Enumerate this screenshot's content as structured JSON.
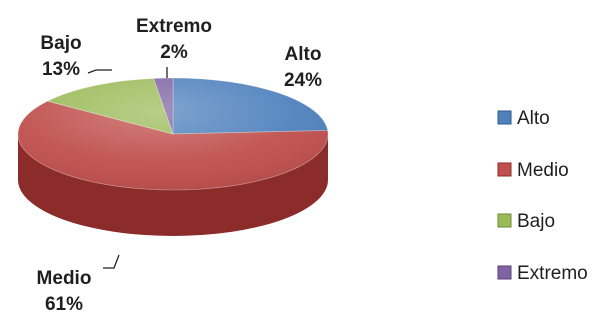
{
  "chart_data": {
    "type": "pie",
    "style": "3d",
    "slices": [
      {
        "category": "Alto",
        "value": 24,
        "value_label": "24%",
        "color": "#4F81BD",
        "side_color": "#2E5A8E"
      },
      {
        "category": "Medio",
        "value": 61,
        "value_label": "61%",
        "color": "#C0504D",
        "side_color": "#8C2C2A"
      },
      {
        "category": "Bajo",
        "value": 13,
        "value_label": "13%",
        "color": "#9BBB59",
        "side_color": "#6E8A35"
      },
      {
        "category": "Extremo",
        "value": 2,
        "value_label": "2%",
        "color": "#8064A2",
        "side_color": "#5A3F7A"
      }
    ],
    "legend": {
      "position": "right",
      "entries": [
        "Alto",
        "Medio",
        "Bajo",
        "Extremo"
      ]
    }
  }
}
